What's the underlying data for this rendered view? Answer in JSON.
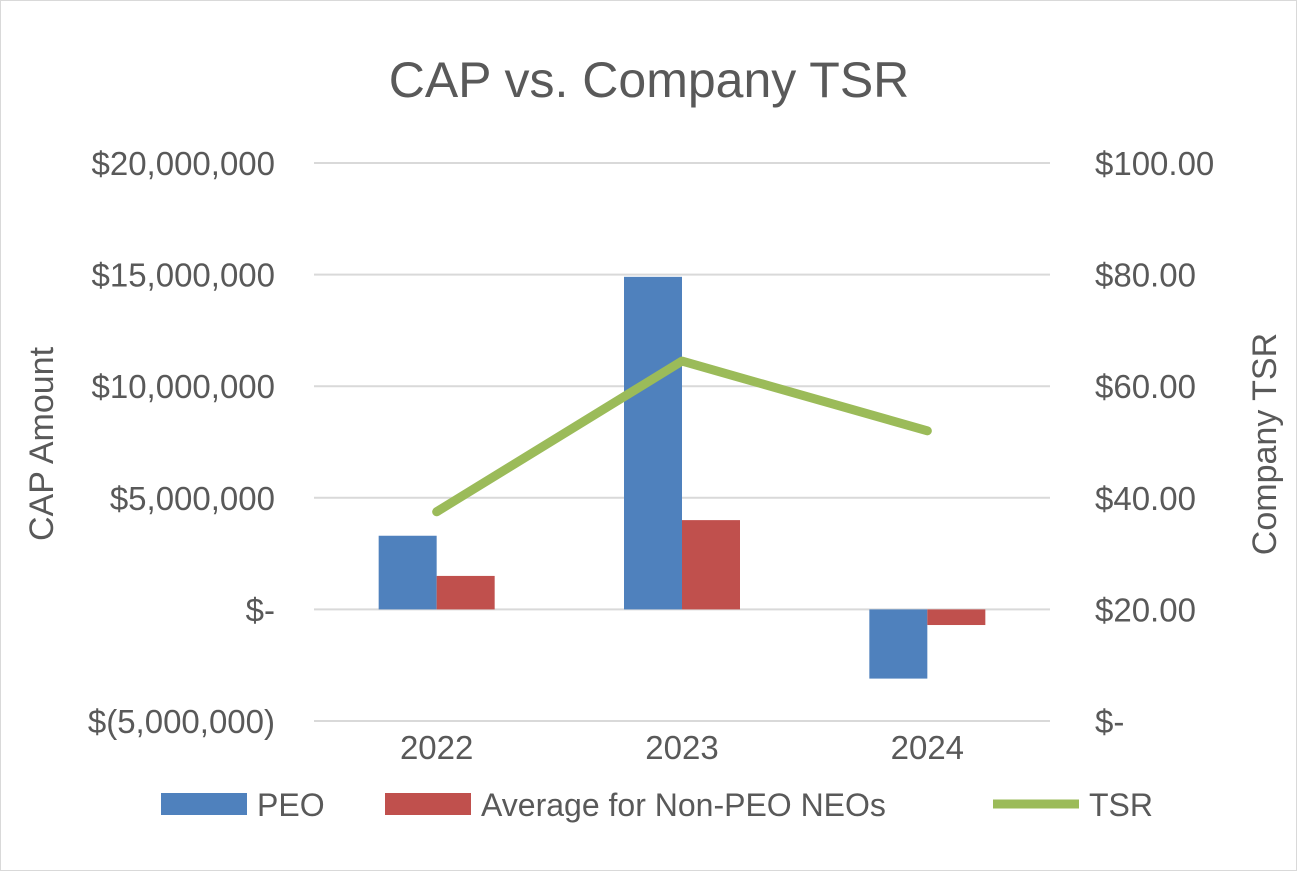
{
  "chart_data": {
    "type": "bar",
    "title": "CAP vs. Company TSR",
    "categories": [
      "2022",
      "2023",
      "2024"
    ],
    "series": [
      {
        "name": "PEO",
        "type": "bar",
        "axis": "left",
        "color": "#4f81bd",
        "values": [
          3300000,
          14900000,
          -3100000
        ]
      },
      {
        "name": "Average for Non-PEO NEOs",
        "type": "bar",
        "axis": "left",
        "color": "#c0504d",
        "values": [
          1500000,
          4000000,
          -700000
        ]
      },
      {
        "name": "TSR",
        "type": "line",
        "axis": "right",
        "color": "#9bbb59",
        "values": [
          37.5,
          64.5,
          52.0
        ]
      }
    ],
    "ylabel": "CAP Amount",
    "y2label": "Company TSR",
    "ylim": [
      -5000000,
      20000000
    ],
    "y2lim": [
      0,
      100
    ],
    "yticks": [
      -5000000,
      0,
      5000000,
      10000000,
      15000000,
      20000000
    ],
    "ytick_labels": [
      "$(5,000,000)",
      "$-",
      "$5,000,000",
      "$10,000,000",
      "$15,000,000",
      "$20,000,000"
    ],
    "y2ticks": [
      0,
      20,
      40,
      60,
      80,
      100
    ],
    "y2tick_labels": [
      "$-",
      "$20.00",
      "$40.00",
      "$60.00",
      "$80.00",
      "$100.00"
    ],
    "grid": true,
    "legend": "bottom"
  }
}
